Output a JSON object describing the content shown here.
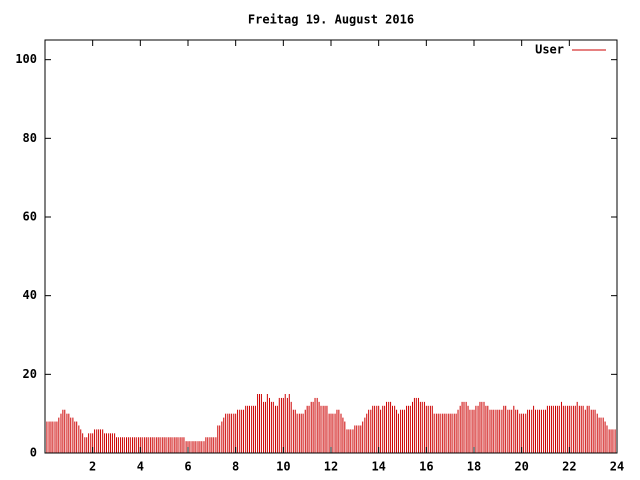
{
  "chart_data": {
    "type": "impulse",
    "title": "Freitag 19. August 2016",
    "series": [
      {
        "name": "User",
        "color": "#cc0000",
        "x": [
          0,
          0.08,
          0.17,
          0.25,
          0.33,
          0.42,
          0.5,
          0.58,
          0.67,
          0.75,
          0.83,
          0.92,
          1,
          1.08,
          1.17,
          1.25,
          1.33,
          1.42,
          1.5,
          1.58,
          1.67,
          1.75,
          1.83,
          1.92,
          2,
          2.08,
          2.17,
          2.25,
          2.33,
          2.42,
          2.5,
          2.58,
          2.67,
          2.75,
          2.83,
          2.92,
          3,
          3.08,
          3.17,
          3.25,
          3.33,
          3.42,
          3.5,
          3.58,
          3.67,
          3.75,
          3.83,
          3.92,
          4,
          4.08,
          4.17,
          4.25,
          4.33,
          4.42,
          4.5,
          4.58,
          4.67,
          4.75,
          4.83,
          4.92,
          5,
          5.08,
          5.17,
          5.25,
          5.33,
          5.42,
          5.5,
          5.58,
          5.67,
          5.75,
          5.83,
          5.92,
          6,
          6.08,
          6.17,
          6.25,
          6.33,
          6.42,
          6.5,
          6.58,
          6.67,
          6.75,
          6.83,
          6.92,
          7,
          7.08,
          7.17,
          7.25,
          7.33,
          7.42,
          7.5,
          7.58,
          7.67,
          7.75,
          7.83,
          7.92,
          8,
          8.08,
          8.17,
          8.25,
          8.33,
          8.42,
          8.5,
          8.58,
          8.67,
          8.75,
          8.83,
          8.92,
          9,
          9.08,
          9.17,
          9.25,
          9.33,
          9.42,
          9.5,
          9.58,
          9.67,
          9.75,
          9.83,
          9.92,
          10,
          10.08,
          10.17,
          10.25,
          10.33,
          10.42,
          10.5,
          10.58,
          10.67,
          10.75,
          10.83,
          10.92,
          11,
          11.08,
          11.17,
          11.25,
          11.33,
          11.42,
          11.5,
          11.58,
          11.67,
          11.75,
          11.83,
          11.92,
          12,
          12.08,
          12.17,
          12.25,
          12.33,
          12.42,
          12.5,
          12.58,
          12.67,
          12.75,
          12.83,
          12.92,
          13,
          13.08,
          13.17,
          13.25,
          13.33,
          13.42,
          13.5,
          13.58,
          13.67,
          13.75,
          13.83,
          13.92,
          14,
          14.08,
          14.17,
          14.25,
          14.33,
          14.42,
          14.5,
          14.58,
          14.67,
          14.75,
          14.83,
          14.92,
          15,
          15.08,
          15.17,
          15.25,
          15.33,
          15.42,
          15.5,
          15.58,
          15.67,
          15.75,
          15.83,
          15.92,
          16,
          16.08,
          16.17,
          16.25,
          16.33,
          16.42,
          16.5,
          16.58,
          16.67,
          16.75,
          16.83,
          16.92,
          17,
          17.08,
          17.17,
          17.25,
          17.33,
          17.42,
          17.5,
          17.58,
          17.67,
          17.75,
          17.83,
          17.92,
          18,
          18.08,
          18.17,
          18.25,
          18.33,
          18.42,
          18.5,
          18.58,
          18.67,
          18.75,
          18.83,
          18.92,
          19,
          19.08,
          19.17,
          19.25,
          19.33,
          19.42,
          19.5,
          19.58,
          19.67,
          19.75,
          19.83,
          19.92,
          20,
          20.08,
          20.17,
          20.25,
          20.33,
          20.42,
          20.5,
          20.58,
          20.67,
          20.75,
          20.83,
          20.92,
          21,
          21.08,
          21.17,
          21.25,
          21.33,
          21.42,
          21.5,
          21.58,
          21.67,
          21.75,
          21.83,
          21.92,
          22,
          22.08,
          22.17,
          22.25,
          22.33,
          22.42,
          22.5,
          22.58,
          22.67,
          22.75,
          22.83,
          22.92,
          23,
          23.08,
          23.17,
          23.25,
          23.33,
          23.42,
          23.5,
          23.58,
          23.67,
          23.75,
          23.83,
          23.92
        ],
        "values": [
          8,
          8,
          8,
          8,
          8,
          8,
          8,
          9,
          10,
          11,
          11,
          10,
          10,
          9,
          9,
          8,
          8,
          7,
          6,
          5,
          4,
          4,
          5,
          5,
          5,
          6,
          6,
          6,
          6,
          6,
          5,
          5,
          5,
          5,
          5,
          5,
          4,
          4,
          4,
          4,
          4,
          4,
          4,
          4,
          4,
          4,
          4,
          4,
          4,
          4,
          4,
          4,
          4,
          4,
          4,
          4,
          4,
          4,
          4,
          4,
          4,
          4,
          4,
          4,
          4,
          4,
          4,
          4,
          4,
          4,
          4,
          3,
          3,
          3,
          3,
          3,
          3,
          3,
          3,
          3,
          3,
          4,
          4,
          4,
          4,
          4,
          4,
          7,
          7,
          8,
          9,
          10,
          10,
          10,
          10,
          10,
          10,
          11,
          11,
          11,
          11,
          12,
          12,
          12,
          12,
          12,
          12,
          15,
          15,
          15,
          13,
          13,
          15,
          14,
          13,
          13,
          12,
          12,
          14,
          14,
          14,
          15,
          14,
          15,
          13,
          11,
          11,
          10,
          10,
          10,
          10,
          11,
          12,
          12,
          13,
          13,
          14,
          14,
          13,
          12,
          12,
          12,
          12,
          10,
          10,
          10,
          10,
          11,
          11,
          10,
          9,
          8,
          6,
          6,
          6,
          6,
          7,
          7,
          7,
          7,
          8,
          9,
          10,
          11,
          11,
          12,
          12,
          12,
          12,
          11,
          12,
          12,
          13,
          13,
          13,
          12,
          12,
          11,
          10,
          11,
          11,
          11,
          12,
          12,
          12,
          13,
          14,
          14,
          14,
          13,
          13,
          13,
          12,
          12,
          12,
          12,
          10,
          10,
          10,
          10,
          10,
          10,
          10,
          10,
          10,
          10,
          10,
          10,
          11,
          12,
          13,
          13,
          13,
          12,
          11,
          11,
          11,
          12,
          12,
          13,
          13,
          13,
          12,
          12,
          11,
          11,
          11,
          11,
          11,
          11,
          11,
          12,
          12,
          11,
          11,
          11,
          12,
          11,
          11,
          10,
          10,
          10,
          10,
          11,
          11,
          11,
          12,
          11,
          11,
          11,
          11,
          11,
          11,
          12,
          12,
          12,
          12,
          12,
          12,
          12,
          13,
          12,
          12,
          12,
          12,
          12,
          12,
          12,
          13,
          12,
          12,
          12,
          11,
          12,
          12,
          11,
          11,
          11,
          10,
          9,
          9,
          9,
          8,
          7,
          6,
          6,
          6,
          6
        ]
      }
    ],
    "xlim": [
      0,
      24
    ],
    "xticks": [
      2,
      4,
      6,
      8,
      10,
      12,
      14,
      16,
      18,
      20,
      22,
      24
    ],
    "ylim": [
      0,
      105
    ],
    "yticks": [
      0,
      20,
      40,
      60,
      80,
      100
    ],
    "legend": "upper right"
  }
}
